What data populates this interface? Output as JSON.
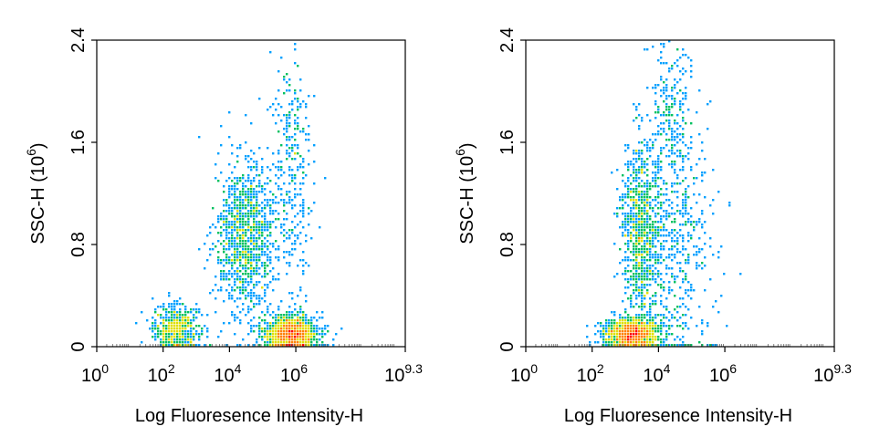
{
  "chart_data": [
    {
      "type": "scatter",
      "subtype": "flow-cytometry-density-dot-plot",
      "title": "",
      "xlabel": "Log Fluoresence Intensity-H",
      "ylabel": "SSC-H",
      "ylabel_exponent": "(10^6)",
      "x_scale": "log10",
      "xlim": [
        0,
        9.3
      ],
      "ylim": [
        0,
        2.4
      ],
      "x_ticks": [
        {
          "base": "10",
          "exp": "0"
        },
        {
          "base": "10",
          "exp": "2"
        },
        {
          "base": "10",
          "exp": "4"
        },
        {
          "base": "10",
          "exp": "6"
        },
        {
          "base": "10",
          "exp": "9.3"
        }
      ],
      "y_ticks": [
        "0",
        "0.8",
        "1.6",
        "2.4"
      ],
      "color_scale": [
        "#0000cc",
        "#00a0ff",
        "#00c060",
        "#e0e000",
        "#ff8000",
        "#ff0000"
      ],
      "populations": [
        {
          "name": "",
          "x_log10_center": 2.4,
          "y_center": 0.14,
          "x_spread": 0.35,
          "y_spread": 0.09,
          "relative_density": 0.35
        },
        {
          "name": "",
          "x_log10_center": 4.5,
          "y_center": 0.85,
          "x_spread": 0.45,
          "y_spread": 0.3,
          "relative_density": 0.7
        },
        {
          "name": "",
          "x_log10_center": 5.85,
          "y_center": 0.1,
          "x_spread": 0.4,
          "y_spread": 0.07,
          "relative_density": 1.0
        },
        {
          "name": "",
          "x_log10_center": 5.9,
          "y_center": 1.4,
          "x_spread": 0.3,
          "y_spread": 0.5,
          "relative_density": 0.15
        }
      ]
    },
    {
      "type": "scatter",
      "subtype": "flow-cytometry-density-dot-plot",
      "title": "",
      "xlabel": "Log Fluoresence Intensity-H",
      "ylabel": "SSC-H",
      "ylabel_exponent": "(10^6)",
      "x_scale": "log10",
      "xlim": [
        0,
        9.3
      ],
      "ylim": [
        0,
        2.4
      ],
      "x_ticks": [
        {
          "base": "10",
          "exp": "0"
        },
        {
          "base": "10",
          "exp": "2"
        },
        {
          "base": "10",
          "exp": "4"
        },
        {
          "base": "10",
          "exp": "6"
        },
        {
          "base": "10",
          "exp": "9.3"
        }
      ],
      "y_ticks": [
        "0",
        "0.8",
        "1.6",
        "2.4"
      ],
      "color_scale": [
        "#0000cc",
        "#00a0ff",
        "#00c060",
        "#e0e000",
        "#ff8000",
        "#ff0000"
      ],
      "populations": [
        {
          "name": "",
          "x_log10_center": 3.2,
          "y_center": 0.1,
          "x_spread": 0.4,
          "y_spread": 0.06,
          "relative_density": 1.0
        },
        {
          "name": "",
          "x_log10_center": 3.45,
          "y_center": 0.9,
          "x_spread": 0.28,
          "y_spread": 0.35,
          "relative_density": 0.6
        },
        {
          "name": "",
          "x_log10_center": 4.6,
          "y_center": 0.7,
          "x_spread": 0.55,
          "y_spread": 0.45,
          "relative_density": 0.25
        },
        {
          "name": "",
          "x_log10_center": 4.4,
          "y_center": 1.75,
          "x_spread": 0.35,
          "y_spread": 0.35,
          "relative_density": 0.12
        }
      ]
    }
  ]
}
